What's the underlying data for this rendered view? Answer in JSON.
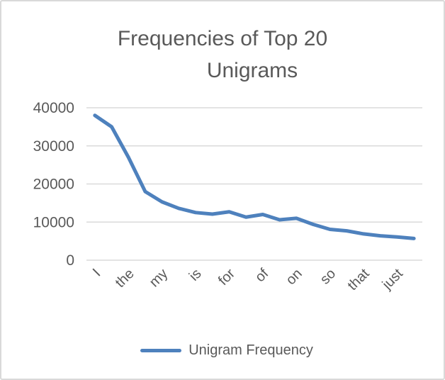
{
  "chart_data": {
    "type": "line",
    "title": "Frequencies of Top 20 Unigrams",
    "title_lines": [
      "Frequencies of Top 20",
      "Unigrams"
    ],
    "series_name": "Unigram Frequency",
    "categories": [
      "I",
      "",
      "the",
      "",
      "my",
      "",
      "is",
      "",
      "for",
      "",
      "of",
      "",
      "on",
      "",
      "so",
      "",
      "that",
      "",
      "just",
      ""
    ],
    "x_tick_labels": [
      "I",
      "the",
      "my",
      "is",
      "for",
      "of",
      "on",
      "so",
      "that",
      "just"
    ],
    "values": [
      38000,
      35000,
      27000,
      18000,
      15300,
      13600,
      12500,
      12100,
      12700,
      11300,
      12000,
      10600,
      11000,
      9400,
      8100,
      7700,
      6900,
      6400,
      6100,
      5700
    ],
    "y_ticks": [
      0,
      10000,
      20000,
      30000,
      40000
    ],
    "ylim": [
      0,
      40000
    ],
    "xlabel": "",
    "ylabel": "",
    "grid": true,
    "legend_position": "bottom",
    "line_color": "#4e81bd",
    "text_color": "#595959",
    "gridline_color": "#dadada"
  }
}
